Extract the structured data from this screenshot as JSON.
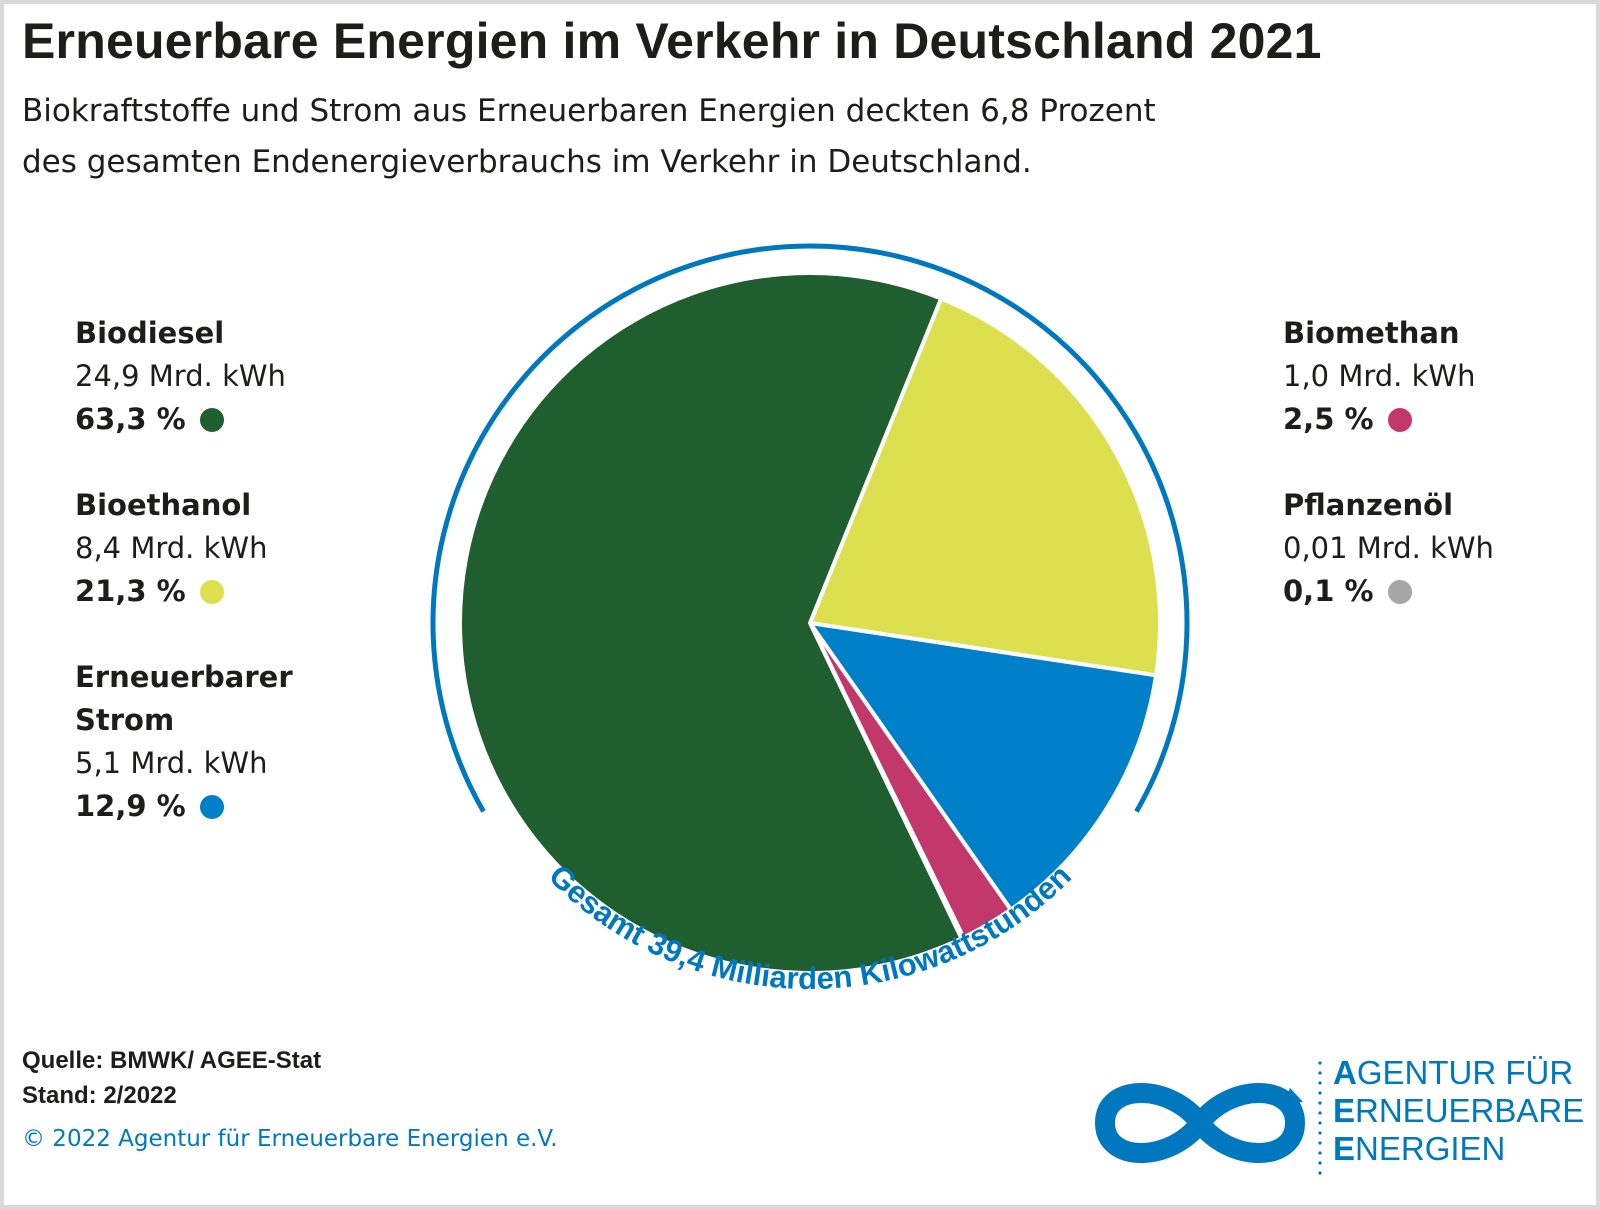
{
  "header": {
    "title": "Erneuerbare Energien im Verkehr in Deutschland 2021",
    "subtitle_line1": "Biokraftstoffe und Strom aus Erneuerbaren Energien deckten 6,8 Prozent",
    "subtitle_line2": "des gesamten Endenergieverbrauchs im Verkehr in Deutschland."
  },
  "chart_data": {
    "type": "pie",
    "unit": "Mrd. kWh",
    "total_label": "Gesamt 39,4 Milliarden Kilowattstunden",
    "slices": [
      {
        "name": "Biodiesel",
        "value": 24.9,
        "value_label": "24,9 Mrd. kWh",
        "percent": 63.3,
        "percent_label": "63,3 %",
        "color": "#1e5e2f"
      },
      {
        "name": "Bioethanol",
        "value": 8.4,
        "value_label": "8,4 Mrd. kWh",
        "percent": 21.3,
        "percent_label": "21,3 %",
        "color": "#dde04e"
      },
      {
        "name": "Erneuerbarer Strom",
        "value": 5.1,
        "value_label": "5,1 Mrd. kWh",
        "percent": 12.9,
        "percent_label": "12,9 %",
        "color": "#0080c9"
      },
      {
        "name": "Biomethan",
        "value": 1.0,
        "value_label": "1,0 Mrd. kWh",
        "percent": 2.5,
        "percent_label": "2,5 %",
        "color": "#c2386b"
      },
      {
        "name": "Pflanzenöl",
        "value": 0.01,
        "value_label": "0,01 Mrd. kWh",
        "percent": 0.1,
        "percent_label": "0,1 %",
        "color": "#a6a6a6"
      }
    ]
  },
  "legend": {
    "biodiesel": {
      "name": "Biodiesel",
      "value": "24,9 Mrd. kWh",
      "percent": "63,3 %"
    },
    "bioethanol": {
      "name": "Bioethanol",
      "value": "8,4 Mrd. kWh",
      "percent": "21,3 %"
    },
    "strom": {
      "name_line1": "Erneuerbarer",
      "name_line2": "Strom",
      "value": "5,1 Mrd. kWh",
      "percent": "12,9 %"
    },
    "biomethan": {
      "name": "Biomethan",
      "value": "1,0 Mrd. kWh",
      "percent": "2,5 %"
    },
    "pflanzenoel": {
      "name": "Pflanzenöl",
      "value": "0,01 Mrd. kWh",
      "percent": "0,1 %"
    }
  },
  "footer": {
    "source": "Quelle: BMWK/ AGEE-Stat",
    "date": "Stand:  2/2022",
    "copyright": "© 2022 Agentur für Erneuerbare Energien e.V."
  },
  "logo": {
    "line1_initial": "A",
    "line1_rest": "GENTUR FÜR",
    "line2_initial": "E",
    "line2_rest": "RNEUERBARE",
    "line3_initial": "E",
    "line3_rest": "NERGIEN",
    "color": "#0078c0"
  }
}
